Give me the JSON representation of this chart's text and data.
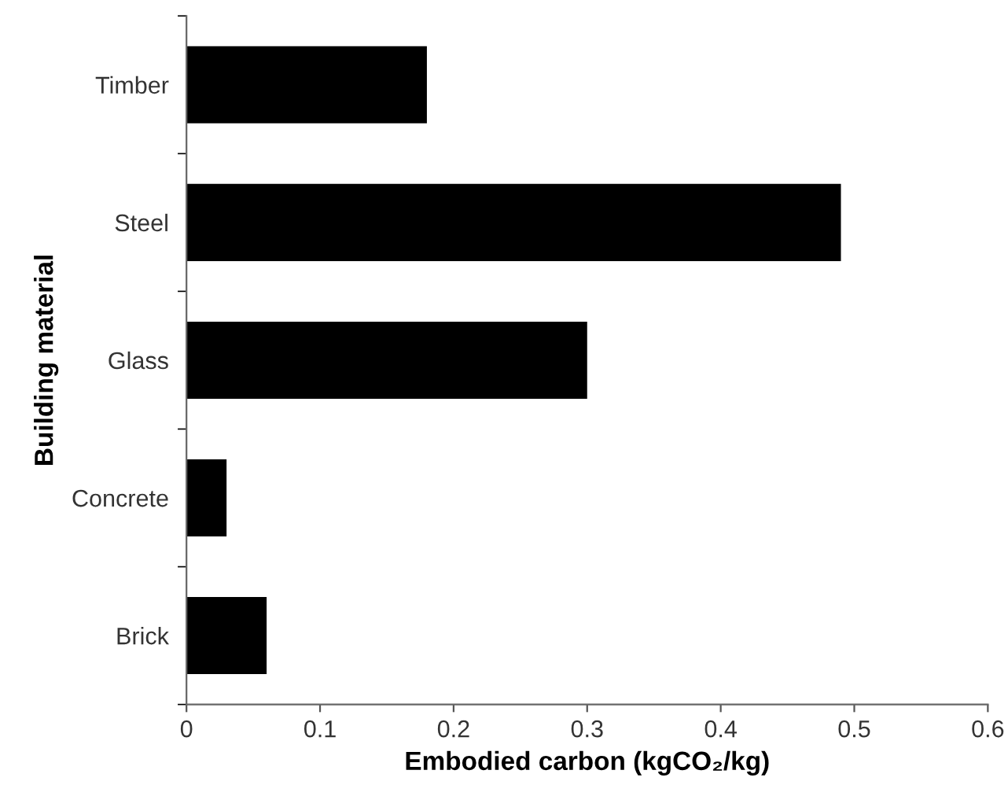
{
  "chart_data": {
    "type": "bar",
    "orientation": "horizontal",
    "xlabel": "Embodied carbon (kgCO₂/kg)",
    "ylabel": "Building material",
    "categories": [
      "Timber",
      "Steel",
      "Glass",
      "Concrete",
      "Brick"
    ],
    "values": [
      0.18,
      0.49,
      0.3,
      0.03,
      0.06
    ],
    "color": "#000000",
    "xlim": [
      0,
      0.6
    ],
    "xticks": [
      0,
      0.1,
      0.2,
      0.3,
      0.4,
      0.5,
      0.6
    ],
    "grid": false,
    "legend": false
  }
}
